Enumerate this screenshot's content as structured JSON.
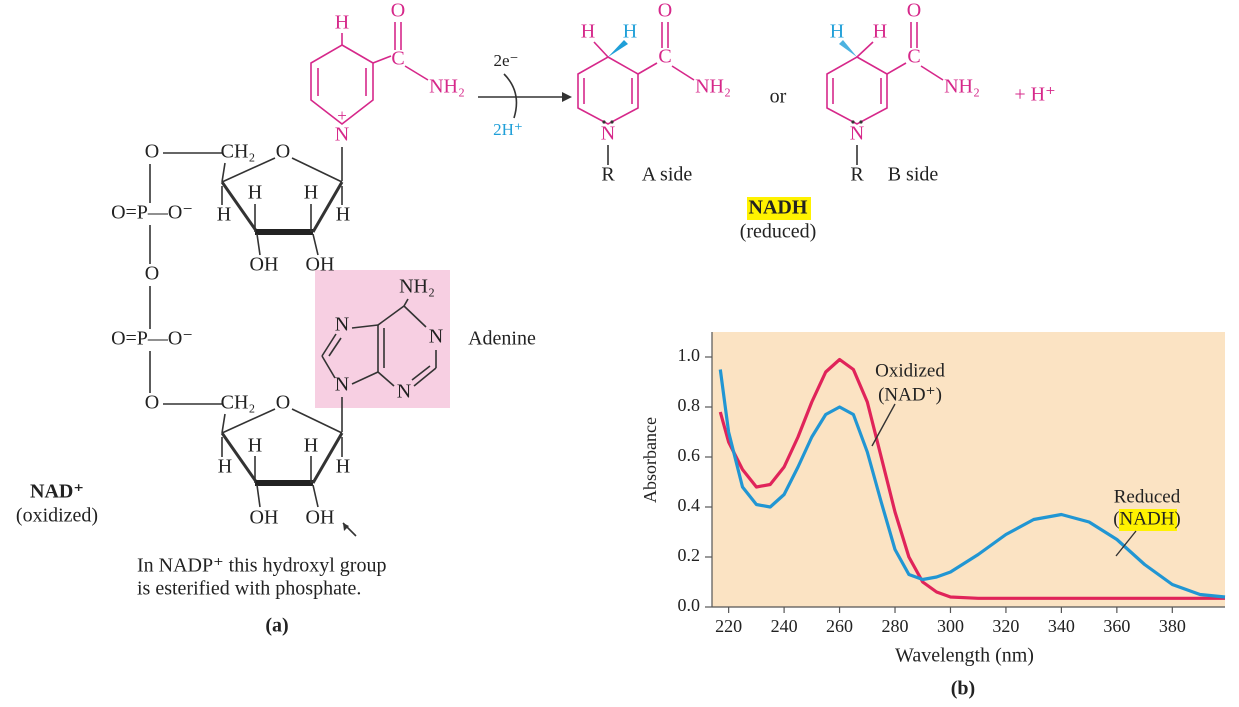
{
  "figure_a": {
    "caption": "(a)",
    "nad_label": "NAD⁺",
    "nad_state": "(oxidized)",
    "adenine": "Adenine",
    "note": [
      "In NADP⁺ this hydroxyl group",
      "is esterified with phosphate."
    ],
    "atoms": [
      "H",
      "O",
      "C",
      "NH₂",
      "+",
      "N",
      "O",
      "CH₂",
      "O",
      "H",
      "H",
      "O=P—O⁻",
      "H",
      "H",
      "OH",
      "OH",
      "O",
      "NH₂",
      "N",
      "N",
      "O=P—O⁻",
      "N",
      "N",
      "O",
      "CH₂",
      "O",
      "H",
      "H",
      "H",
      "H",
      "OH",
      "OH"
    ]
  },
  "reaction": {
    "electrons": "2e⁻",
    "protons": "2H⁺",
    "or": "or",
    "a_side": "A side",
    "b_side": "B side",
    "plus": "+ H⁺",
    "product": "NADH",
    "product_state": "(reduced)",
    "atoms": [
      "H",
      "H",
      "O",
      "C",
      "NH₂",
      "N",
      "R",
      "H",
      "H",
      "O",
      "C",
      "NH₂",
      "N",
      "R"
    ]
  },
  "chart_data": {
    "type": "line",
    "caption": "(b)",
    "x_label": "Wavelength (nm)",
    "y_label": "Absorbance",
    "x": [
      217,
      220,
      225,
      230,
      235,
      240,
      245,
      250,
      255,
      260,
      265,
      270,
      275,
      280,
      285,
      290,
      295,
      300,
      310,
      320,
      330,
      340,
      350,
      360,
      370,
      380,
      390,
      399
    ],
    "series": [
      {
        "name": "Oxidized",
        "label": "(NAD⁺)",
        "color": "#e0245a",
        "values": [
          0.78,
          0.66,
          0.55,
          0.48,
          0.49,
          0.56,
          0.68,
          0.82,
          0.94,
          0.99,
          0.95,
          0.82,
          0.6,
          0.38,
          0.2,
          0.1,
          0.06,
          0.04,
          0.035,
          0.035,
          0.035,
          0.035,
          0.035,
          0.035,
          0.035,
          0.035,
          0.035,
          0.035
        ]
      },
      {
        "name": "Reduced",
        "label": "(NADH)",
        "color": "#2196d3",
        "values": [
          0.95,
          0.7,
          0.48,
          0.41,
          0.4,
          0.45,
          0.56,
          0.68,
          0.77,
          0.8,
          0.77,
          0.62,
          0.42,
          0.23,
          0.13,
          0.11,
          0.12,
          0.14,
          0.21,
          0.29,
          0.35,
          0.37,
          0.34,
          0.27,
          0.17,
          0.09,
          0.05,
          0.04
        ]
      }
    ],
    "xlim": [
      214,
      399
    ],
    "ylim": [
      0,
      1.1
    ],
    "xticks": [
      220,
      240,
      260,
      280,
      300,
      320,
      340,
      360,
      380
    ],
    "yticks": [
      {
        "value": 0,
        "label": "0.0"
      },
      0.2,
      0.4,
      0.6,
      0.8,
      {
        "value": 1,
        "label": "1.0"
      }
    ],
    "background": "#fbe3c3"
  }
}
